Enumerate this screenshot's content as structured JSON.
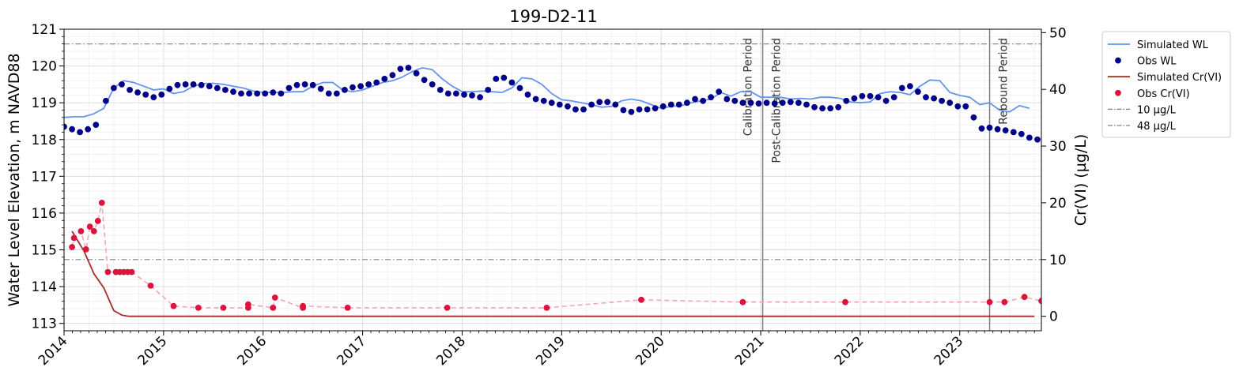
{
  "chart_data": {
    "type": "line",
    "title": "199-D2-11",
    "ylabel": "Water Level Elevation, m NAVD88",
    "y2label": "Cr(VI) (µg/L)",
    "xlabel": "",
    "xlim": [
      2014.0,
      2023.82
    ],
    "ylim": [
      112.8,
      121.0
    ],
    "y2lim": [
      -2.55,
      50.6
    ],
    "x_ticks": [
      2014,
      2015,
      2016,
      2017,
      2018,
      2019,
      2020,
      2021,
      2022,
      2023
    ],
    "x_tick_labels": [
      "2014",
      "2015",
      "2016",
      "2017",
      "2018",
      "2019",
      "2020",
      "2021",
      "2022",
      "2023"
    ],
    "y_ticks": [
      113,
      114,
      115,
      116,
      117,
      118,
      119,
      120,
      121
    ],
    "y_tick_labels": [
      "113",
      "114",
      "115",
      "116",
      "117",
      "118",
      "119",
      "120",
      "121"
    ],
    "y2_ticks": [
      0,
      10,
      20,
      30,
      40,
      50
    ],
    "y2_tick_labels": [
      "0",
      "10",
      "20",
      "30",
      "40",
      "50"
    ],
    "grid": true,
    "legend_position": "outside-top-right",
    "period_lines": [
      {
        "x": 2021.02,
        "label": "Calibration Period",
        "side": "left"
      },
      {
        "x": 2021.02,
        "label": "Post-Calibration Period",
        "side": "right"
      },
      {
        "x": 2023.3,
        "label": "Rebound Period",
        "side": "right"
      }
    ],
    "reference_lines": [
      {
        "name": "10 µg/L",
        "y2": 10,
        "color": "#808080"
      },
      {
        "name": "48 µg/L",
        "y2": 48,
        "color": "#808080"
      }
    ],
    "series": [
      {
        "name": "Simulated WL",
        "kind": "line",
        "axis": "left",
        "color": "#6495ED",
        "x": [
          2014.0,
          2014.1,
          2014.2,
          2014.3,
          2014.4,
          2014.5,
          2014.6,
          2014.7,
          2014.8,
          2014.9,
          2015.0,
          2015.1,
          2015.2,
          2015.3,
          2015.4,
          2015.5,
          2015.6,
          2015.7,
          2015.8,
          2015.9,
          2016.0,
          2016.1,
          2016.2,
          2016.3,
          2016.4,
          2016.5,
          2016.6,
          2016.7,
          2016.8,
          2016.9,
          2017.0,
          2017.1,
          2017.2,
          2017.3,
          2017.4,
          2017.5,
          2017.6,
          2017.7,
          2017.8,
          2017.9,
          2018.0,
          2018.1,
          2018.2,
          2018.3,
          2018.4,
          2018.5,
          2018.6,
          2018.7,
          2018.8,
          2018.9,
          2019.0,
          2019.1,
          2019.2,
          2019.3,
          2019.4,
          2019.5,
          2019.6,
          2019.7,
          2019.8,
          2019.9,
          2020.0,
          2020.1,
          2020.2,
          2020.3,
          2020.4,
          2020.5,
          2020.6,
          2020.7,
          2020.8,
          2020.9,
          2021.0,
          2021.1,
          2021.2,
          2021.3,
          2021.4,
          2021.5,
          2021.6,
          2021.7,
          2021.8,
          2021.9,
          2022.0,
          2022.1,
          2022.2,
          2022.3,
          2022.4,
          2022.5,
          2022.6,
          2022.7,
          2022.8,
          2022.9,
          2023.0,
          2023.1,
          2023.2,
          2023.3,
          2023.4,
          2023.5,
          2023.6,
          2023.7
        ],
        "y": [
          118.6,
          118.62,
          118.62,
          118.7,
          118.85,
          119.4,
          119.6,
          119.55,
          119.45,
          119.35,
          119.38,
          119.25,
          119.3,
          119.45,
          119.52,
          119.53,
          119.5,
          119.45,
          119.4,
          119.32,
          119.28,
          119.28,
          119.28,
          119.3,
          119.3,
          119.45,
          119.55,
          119.55,
          119.35,
          119.3,
          119.35,
          119.45,
          119.55,
          119.6,
          119.7,
          119.85,
          119.95,
          119.9,
          119.65,
          119.45,
          119.3,
          119.3,
          119.32,
          119.3,
          119.28,
          119.4,
          119.68,
          119.65,
          119.5,
          119.25,
          119.08,
          119.05,
          119.0,
          118.95,
          118.88,
          118.9,
          119.05,
          119.1,
          119.05,
          118.95,
          118.85,
          118.9,
          118.92,
          119.0,
          119.05,
          119.1,
          119.28,
          119.18,
          119.3,
          119.3,
          119.15,
          119.15,
          119.15,
          119.1,
          119.12,
          119.1,
          119.15,
          119.15,
          119.12,
          119.02,
          119.0,
          119.02,
          119.25,
          119.3,
          119.28,
          119.22,
          119.45,
          119.62,
          119.6,
          119.28,
          119.2,
          119.15,
          118.95,
          119.0,
          118.8,
          118.75,
          118.92,
          118.85
        ],
        "gap_segments": [
          [
            2014.38,
            2014.48
          ]
        ]
      },
      {
        "name": "Obs WL",
        "kind": "scatter",
        "axis": "left",
        "color": "#00008B",
        "x": [
          2014.0,
          2014.08,
          2014.16,
          2014.24,
          2014.32,
          2014.42,
          2014.5,
          2014.58,
          2014.66,
          2014.74,
          2014.82,
          2014.9,
          2014.98,
          2015.06,
          2015.14,
          2015.22,
          2015.3,
          2015.38,
          2015.46,
          2015.54,
          2015.62,
          2015.7,
          2015.78,
          2015.86,
          2015.94,
          2016.02,
          2016.1,
          2016.18,
          2016.26,
          2016.34,
          2016.42,
          2016.5,
          2016.58,
          2016.66,
          2016.74,
          2016.82,
          2016.9,
          2016.98,
          2017.06,
          2017.14,
          2017.22,
          2017.3,
          2017.38,
          2017.46,
          2017.54,
          2017.62,
          2017.7,
          2017.78,
          2017.86,
          2017.94,
          2018.02,
          2018.1,
          2018.18,
          2018.26,
          2018.34,
          2018.42,
          2018.5,
          2018.58,
          2018.66,
          2018.74,
          2018.82,
          2018.9,
          2018.98,
          2019.06,
          2019.14,
          2019.22,
          2019.3,
          2019.38,
          2019.46,
          2019.54,
          2019.62,
          2019.7,
          2019.78,
          2019.86,
          2019.94,
          2020.02,
          2020.1,
          2020.18,
          2020.26,
          2020.34,
          2020.42,
          2020.5,
          2020.58,
          2020.66,
          2020.74,
          2020.82,
          2020.9,
          2020.98,
          2021.06,
          2021.14,
          2021.22,
          2021.3,
          2021.38,
          2021.46,
          2021.54,
          2021.62,
          2021.7,
          2021.78,
          2021.86,
          2021.94,
          2022.02,
          2022.1,
          2022.18,
          2022.26,
          2022.34,
          2022.42,
          2022.5,
          2022.58,
          2022.66,
          2022.74,
          2022.82,
          2022.9,
          2022.98,
          2023.06,
          2023.14,
          2023.22,
          2023.3,
          2023.38,
          2023.46,
          2023.54,
          2023.62,
          2023.7,
          2023.78
        ],
        "y": [
          118.35,
          118.28,
          118.2,
          118.28,
          118.4,
          119.05,
          119.4,
          119.5,
          119.35,
          119.28,
          119.22,
          119.15,
          119.22,
          119.38,
          119.48,
          119.5,
          119.5,
          119.48,
          119.45,
          119.4,
          119.35,
          119.3,
          119.25,
          119.25,
          119.25,
          119.25,
          119.28,
          119.25,
          119.4,
          119.48,
          119.5,
          119.48,
          119.38,
          119.25,
          119.25,
          119.35,
          119.42,
          119.45,
          119.5,
          119.55,
          119.65,
          119.75,
          119.92,
          119.95,
          119.8,
          119.62,
          119.5,
          119.35,
          119.25,
          119.25,
          119.22,
          119.2,
          119.15,
          119.35,
          119.65,
          119.68,
          119.55,
          119.4,
          119.22,
          119.1,
          119.05,
          119.0,
          118.95,
          118.9,
          118.82,
          118.82,
          118.95,
          119.02,
          119.02,
          118.95,
          118.8,
          118.75,
          118.82,
          118.82,
          118.85,
          118.9,
          118.95,
          118.95,
          119.0,
          119.1,
          119.05,
          119.15,
          119.3,
          119.1,
          119.05,
          119.0,
          119.0,
          118.98,
          119.0,
          118.98,
          119.0,
          119.02,
          119.0,
          118.95,
          118.88,
          118.85,
          118.85,
          118.88,
          119.05,
          119.12,
          119.18,
          119.18,
          119.15,
          119.05,
          119.15,
          119.4,
          119.45,
          119.3,
          119.15,
          119.12,
          119.05,
          119.0,
          118.9,
          118.9,
          118.6,
          118.3,
          118.32,
          118.28,
          118.25,
          118.2,
          118.15,
          118.05,
          118.0
        ]
      },
      {
        "name": "Simulated Cr(VI)",
        "kind": "line",
        "axis": "right",
        "color": "#A52A2A",
        "x": [
          2014.08,
          2014.2,
          2014.3,
          2014.4,
          2014.5,
          2014.58,
          2014.65,
          2014.8,
          2015.0,
          2016.0,
          2017.0,
          2018.0,
          2019.0,
          2020.0,
          2021.0,
          2022.0,
          2023.0,
          2023.75
        ],
        "y": [
          15,
          11.5,
          7.5,
          5.0,
          1.0,
          0.2,
          0.0,
          0.0,
          0.0,
          0.0,
          0.0,
          0.0,
          0.0,
          0.0,
          0.0,
          0.0,
          0.0,
          0.0
        ]
      },
      {
        "name": "Obs Cr(VI)",
        "kind": "scatter",
        "axis": "right",
        "color": "#DC143C",
        "connector_color": "#F4A6B8",
        "x": [
          2014.08,
          2014.1,
          2014.17,
          2014.22,
          2014.26,
          2014.3,
          2014.34,
          2014.38,
          2014.44,
          2014.52,
          2014.56,
          2014.6,
          2014.64,
          2014.68,
          2014.87,
          2015.1,
          2015.35,
          2015.6,
          2015.85,
          2015.85,
          2016.1,
          2016.12,
          2016.4,
          2016.4,
          2016.85,
          2017.85,
          2018.85,
          2019.8,
          2020.82,
          2021.85,
          2023.3,
          2023.45,
          2023.65,
          2023.82
        ],
        "y": [
          12.2,
          13.8,
          15.0,
          11.8,
          15.8,
          15.0,
          16.8,
          20.0,
          7.8,
          7.8,
          7.8,
          7.8,
          7.8,
          7.8,
          5.4,
          1.8,
          1.5,
          1.5,
          1.5,
          2.1,
          1.5,
          3.3,
          1.5,
          1.8,
          1.5,
          1.5,
          1.5,
          2.9,
          2.5,
          2.5,
          2.5,
          2.5,
          3.4,
          2.7
        ]
      }
    ]
  }
}
